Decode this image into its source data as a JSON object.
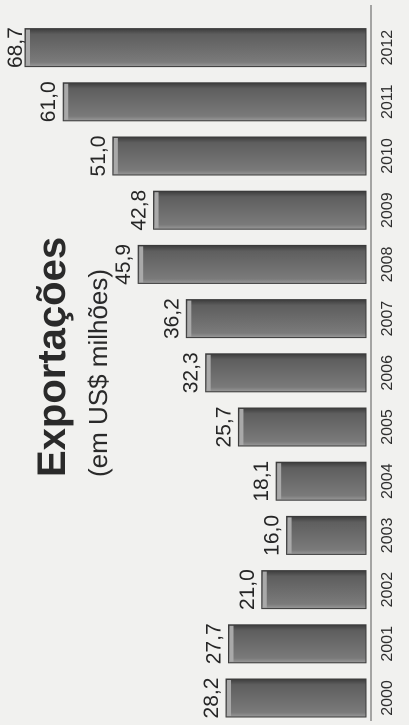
{
  "chart_data": {
    "type": "bar",
    "title": "Exportações",
    "subtitle": "(em US$ milhões)",
    "categories": [
      "2000",
      "2001",
      "2002",
      "2003",
      "2004",
      "2005",
      "2006",
      "2007",
      "2008",
      "2009",
      "2010",
      "2011",
      "2012"
    ],
    "values": [
      28.2,
      27.7,
      21.0,
      16.0,
      18.1,
      25.7,
      32.3,
      36.2,
      45.9,
      42.8,
      51.0,
      61.0,
      68.7
    ],
    "value_labels": [
      "28,2",
      "27,7",
      "21,0",
      "16,0",
      "18,1",
      "25,7",
      "32,3",
      "36,2",
      "45,9",
      "42,8",
      "51,0",
      "61,0",
      "68,7"
    ],
    "ylim": [
      0,
      68.7
    ],
    "grid": false,
    "legend": "none",
    "colors": {
      "bar_fill": "#6f6f6f",
      "bar_highlight": "#a9a9a9",
      "bar_shadow": "#3a3a3a",
      "text": "#262626",
      "axis": "#8a8a8a"
    }
  }
}
